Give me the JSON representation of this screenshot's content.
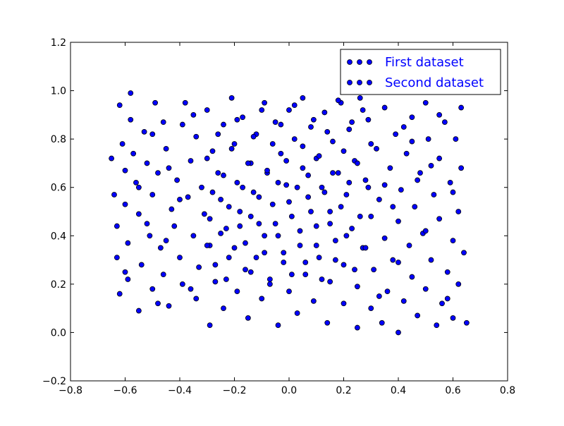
{
  "chart_data": {
    "type": "scatter",
    "title": "",
    "xlabel": "",
    "ylabel": "",
    "xlim": [
      -0.8,
      0.8
    ],
    "ylim": [
      -0.2,
      1.2
    ],
    "xticks": [
      -0.8,
      -0.6,
      -0.4,
      -0.2,
      0.0,
      0.2,
      0.4,
      0.6,
      0.8
    ],
    "yticks": [
      -0.2,
      0.0,
      0.2,
      0.4,
      0.6,
      0.8,
      1.0,
      1.2
    ],
    "xtick_labels": [
      "−0.8",
      "−0.6",
      "−0.4",
      "−0.2",
      "0.0",
      "0.2",
      "0.4",
      "0.6",
      "0.8"
    ],
    "ytick_labels": [
      "−0.2",
      "0.0",
      "0.2",
      "0.4",
      "0.6",
      "0.8",
      "1.0",
      "1.2"
    ],
    "grid": false,
    "legend_position": "top-right",
    "marker_color": "#0000ff",
    "marker_edge_color": "#000000",
    "legend_text_color": "#0000ff",
    "series": [
      {
        "name": "First dataset",
        "points": [
          [
            -0.65,
            0.72
          ],
          [
            -0.64,
            0.57
          ],
          [
            -0.63,
            0.44
          ],
          [
            -0.63,
            0.31
          ],
          [
            -0.62,
            0.16
          ],
          [
            -0.62,
            0.94
          ],
          [
            -0.61,
            0.78
          ],
          [
            -0.6,
            0.67
          ],
          [
            -0.6,
            0.53
          ],
          [
            -0.59,
            0.37
          ],
          [
            -0.59,
            0.22
          ],
          [
            -0.58,
            0.99
          ],
          [
            -0.58,
            0.88
          ],
          [
            -0.57,
            0.74
          ],
          [
            -0.56,
            0.62
          ],
          [
            -0.55,
            0.49
          ],
          [
            -0.55,
            0.09
          ],
          [
            -0.54,
            0.28
          ],
          [
            -0.53,
            0.83
          ],
          [
            -0.52,
            0.7
          ],
          [
            -0.51,
            0.4
          ],
          [
            -0.5,
            0.57
          ],
          [
            -0.5,
            0.18
          ],
          [
            -0.49,
            0.95
          ],
          [
            -0.48,
            0.66
          ],
          [
            -0.47,
            0.35
          ],
          [
            -0.46,
            0.24
          ],
          [
            -0.46,
            0.87
          ],
          [
            -0.45,
            0.76
          ],
          [
            -0.44,
            0.11
          ],
          [
            -0.43,
            0.51
          ],
          [
            -0.42,
            0.44
          ],
          [
            -0.41,
            0.63
          ],
          [
            -0.4,
            0.31
          ],
          [
            -0.39,
            0.86
          ],
          [
            -0.39,
            0.2
          ],
          [
            -0.38,
            0.95
          ],
          [
            -0.37,
            0.56
          ],
          [
            -0.36,
            0.71
          ],
          [
            -0.35,
            0.4
          ],
          [
            -0.34,
            0.14
          ],
          [
            -0.34,
            0.81
          ],
          [
            -0.33,
            0.27
          ],
          [
            -0.32,
            0.6
          ],
          [
            -0.31,
            0.49
          ],
          [
            -0.3,
            0.92
          ],
          [
            -0.29,
            0.03
          ],
          [
            -0.29,
            0.36
          ],
          [
            -0.28,
            0.75
          ],
          [
            -0.27,
            0.21
          ],
          [
            -0.26,
            0.66
          ],
          [
            -0.25,
            0.55
          ],
          [
            -0.24,
            0.86
          ],
          [
            -0.24,
            0.1
          ],
          [
            -0.23,
            0.43
          ],
          [
            -0.22,
            0.31
          ],
          [
            -0.21,
            0.97
          ],
          [
            -0.2,
            0.78
          ],
          [
            -0.19,
            0.17
          ],
          [
            -0.19,
            0.62
          ],
          [
            -0.18,
            0.5
          ],
          [
            -0.17,
            0.89
          ],
          [
            -0.16,
            0.37
          ],
          [
            -0.15,
            0.06
          ],
          [
            -0.14,
            0.7
          ],
          [
            -0.14,
            0.25
          ],
          [
            -0.13,
            0.58
          ],
          [
            -0.12,
            0.82
          ],
          [
            -0.11,
            0.45
          ],
          [
            -0.1,
            0.14
          ],
          [
            -0.09,
            0.95
          ],
          [
            -0.09,
            0.33
          ],
          [
            -0.08,
            0.66
          ],
          [
            -0.07,
            0.22
          ],
          [
            -0.06,
            0.53
          ],
          [
            -0.05,
            0.87
          ],
          [
            -0.04,
            0.03
          ],
          [
            -0.04,
            0.4
          ],
          [
            -0.03,
            0.74
          ],
          [
            -0.02,
            0.29
          ],
          [
            -0.01,
            0.61
          ],
          [
            0.0,
            0.92
          ],
          [
            0.0,
            0.17
          ],
          [
            0.01,
            0.48
          ],
          [
            0.02,
            0.8
          ],
          [
            0.03,
            0.08
          ],
          [
            0.04,
            0.36
          ],
          [
            0.05,
            0.68
          ],
          [
            0.05,
            0.97
          ],
          [
            0.06,
            0.24
          ],
          [
            0.07,
            0.56
          ],
          [
            0.08,
            0.85
          ],
          [
            0.09,
            0.13
          ],
          [
            0.1,
            0.44
          ],
          [
            0.1,
            0.72
          ],
          [
            0.11,
            0.31
          ],
          [
            0.12,
            0.6
          ],
          [
            0.13,
            0.91
          ],
          [
            0.14,
            0.04
          ],
          [
            0.15,
            0.21
          ],
          [
            0.15,
            0.5
          ],
          [
            0.16,
            0.79
          ],
          [
            0.17,
            0.38
          ],
          [
            0.18,
            0.66
          ],
          [
            0.19,
            0.95
          ],
          [
            0.2,
            0.12
          ],
          [
            0.2,
            0.28
          ],
          [
            0.21,
            0.57
          ],
          [
            0.22,
            0.84
          ],
          [
            0.23,
            0.43
          ],
          [
            0.24,
            0.71
          ],
          [
            0.25,
            0.02
          ],
          [
            0.25,
            0.19
          ],
          [
            0.26,
            0.97
          ],
          [
            0.27,
            0.35
          ],
          [
            0.28,
            0.63
          ],
          [
            0.29,
            0.88
          ],
          [
            0.3,
            0.1
          ],
          [
            0.3,
            0.48
          ],
          [
            0.31,
            0.26
          ],
          [
            0.32,
            0.76
          ],
          [
            0.33,
            0.55
          ],
          [
            0.34,
            0.04
          ],
          [
            0.35,
            0.39
          ],
          [
            0.35,
            0.93
          ],
          [
            0.36,
            0.17
          ],
          [
            0.37,
            0.68
          ],
          [
            0.38,
            0.3
          ],
          [
            0.39,
            0.82
          ],
          [
            0.4,
            0.0
          ],
          [
            0.4,
            0.46
          ],
          [
            0.41,
            0.59
          ],
          [
            0.42,
            0.13
          ],
          [
            0.43,
            0.74
          ],
          [
            0.44,
            0.36
          ],
          [
            0.45,
            0.89
          ],
          [
            0.45,
            0.23
          ],
          [
            0.46,
            0.52
          ],
          [
            0.47,
            0.07
          ],
          [
            0.48,
            0.66
          ],
          [
            0.49,
            0.41
          ],
          [
            0.5,
            0.95
          ],
          [
            0.5,
            0.18
          ],
          [
            0.51,
            0.8
          ],
          [
            0.52,
            0.3
          ],
          [
            0.53,
            0.57
          ],
          [
            0.54,
            0.03
          ],
          [
            0.55,
            0.47
          ],
          [
            0.55,
            0.72
          ],
          [
            0.56,
            0.12
          ],
          [
            0.57,
            0.87
          ],
          [
            0.58,
            0.25
          ],
          [
            0.59,
            0.62
          ],
          [
            0.6,
            0.38
          ],
          [
            0.6,
            0.06
          ],
          [
            0.61,
            0.8
          ],
          [
            0.62,
            0.5
          ],
          [
            0.62,
            0.2
          ],
          [
            0.63,
            0.68
          ],
          [
            0.63,
            0.93
          ],
          [
            0.64,
            0.33
          ],
          [
            0.65,
            0.04
          ]
        ]
      },
      {
        "name": "Second dataset",
        "points": [
          [
            -0.3,
            0.36
          ],
          [
            -0.3,
            0.72
          ],
          [
            -0.29,
            0.47
          ],
          [
            -0.28,
            0.58
          ],
          [
            -0.27,
            0.28
          ],
          [
            -0.26,
            0.82
          ],
          [
            -0.25,
            0.41
          ],
          [
            -0.24,
            0.65
          ],
          [
            -0.23,
            0.22
          ],
          [
            -0.22,
            0.52
          ],
          [
            -0.21,
            0.76
          ],
          [
            -0.2,
            0.35
          ],
          [
            -0.19,
            0.88
          ],
          [
            -0.18,
            0.44
          ],
          [
            -0.17,
            0.6
          ],
          [
            -0.16,
            0.26
          ],
          [
            -0.15,
            0.7
          ],
          [
            -0.14,
            0.48
          ],
          [
            -0.13,
            0.81
          ],
          [
            -0.12,
            0.31
          ],
          [
            -0.11,
            0.56
          ],
          [
            -0.1,
            0.92
          ],
          [
            -0.09,
            0.4
          ],
          [
            -0.08,
            0.67
          ],
          [
            -0.07,
            0.2
          ],
          [
            -0.06,
            0.78
          ],
          [
            -0.05,
            0.45
          ],
          [
            -0.04,
            0.62
          ],
          [
            -0.03,
            0.86
          ],
          [
            -0.02,
            0.33
          ],
          [
            -0.01,
            0.71
          ],
          [
            0.0,
            0.54
          ],
          [
            0.01,
            0.24
          ],
          [
            0.02,
            0.94
          ],
          [
            0.03,
            0.6
          ],
          [
            0.04,
            0.42
          ],
          [
            0.05,
            0.77
          ],
          [
            0.06,
            0.29
          ],
          [
            0.07,
            0.65
          ],
          [
            0.08,
            0.5
          ],
          [
            0.09,
            0.88
          ],
          [
            0.1,
            0.36
          ],
          [
            0.11,
            0.73
          ],
          [
            0.12,
            0.22
          ],
          [
            0.13,
            0.58
          ],
          [
            0.14,
            0.83
          ],
          [
            0.15,
            0.45
          ],
          [
            0.16,
            0.66
          ],
          [
            0.17,
            0.3
          ],
          [
            0.18,
            0.96
          ],
          [
            0.19,
            0.52
          ],
          [
            0.2,
            0.75
          ],
          [
            0.21,
            0.4
          ],
          [
            0.22,
            0.62
          ],
          [
            0.23,
            0.87
          ],
          [
            0.24,
            0.26
          ],
          [
            0.25,
            0.7
          ],
          [
            0.26,
            0.48
          ],
          [
            0.27,
            0.92
          ],
          [
            0.28,
            0.35
          ],
          [
            0.29,
            0.6
          ],
          [
            0.3,
            0.78
          ],
          [
            -0.55,
            0.6
          ],
          [
            -0.5,
            0.82
          ],
          [
            -0.45,
            0.38
          ],
          [
            -0.4,
            0.55
          ],
          [
            -0.35,
            0.9
          ],
          [
            -0.6,
            0.25
          ],
          [
            -0.52,
            0.45
          ],
          [
            -0.48,
            0.12
          ],
          [
            0.35,
            0.61
          ],
          [
            0.4,
            0.29
          ],
          [
            0.45,
            0.79
          ],
          [
            0.5,
            0.42
          ],
          [
            0.55,
            0.9
          ],
          [
            0.6,
            0.58
          ],
          [
            0.58,
            0.14
          ],
          [
            0.47,
            0.63
          ],
          [
            0.42,
            0.85
          ],
          [
            0.38,
            0.52
          ],
          [
            -0.44,
            0.68
          ],
          [
            -0.36,
            0.18
          ],
          [
            0.33,
            0.15
          ],
          [
            0.52,
            0.69
          ]
        ]
      }
    ]
  }
}
